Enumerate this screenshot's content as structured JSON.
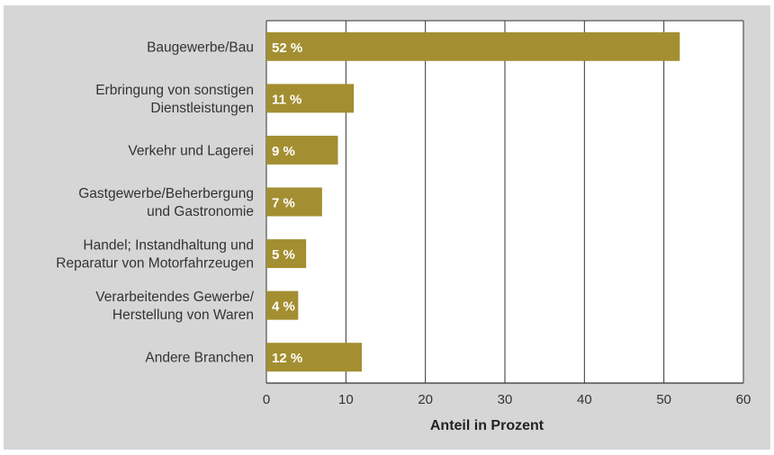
{
  "chart_data": {
    "type": "bar",
    "orientation": "horizontal",
    "categories": [
      [
        "Baugewerbe/Bau"
      ],
      [
        "Erbringung von sonstigen",
        "Dienstleistungen"
      ],
      [
        "Verkehr und Lagerei"
      ],
      [
        "Gastgewerbe/Beherbergung",
        "und Gastronomie"
      ],
      [
        "Handel; Instandhaltung und",
        "Reparatur von Motorfahrzeugen"
      ],
      [
        "Verarbeitendes Gewerbe/",
        "Herstellung von Waren"
      ],
      [
        "Andere Branchen"
      ]
    ],
    "values": [
      52,
      11,
      9,
      7,
      5,
      4,
      12
    ],
    "data_labels": [
      "52 %",
      "11 %",
      "9 %",
      "7 %",
      "5 %",
      "4 %",
      "12 %"
    ],
    "xlabel": "Anteil in Prozent",
    "xlim": [
      0,
      60
    ],
    "xticks": [
      0,
      10,
      20,
      30,
      40,
      50,
      60
    ],
    "grid": "vertical",
    "colors": {
      "bar": "#a38f31",
      "background": "#d6d6d6",
      "plot_background": "#ffffff",
      "grid": "#333333"
    }
  }
}
